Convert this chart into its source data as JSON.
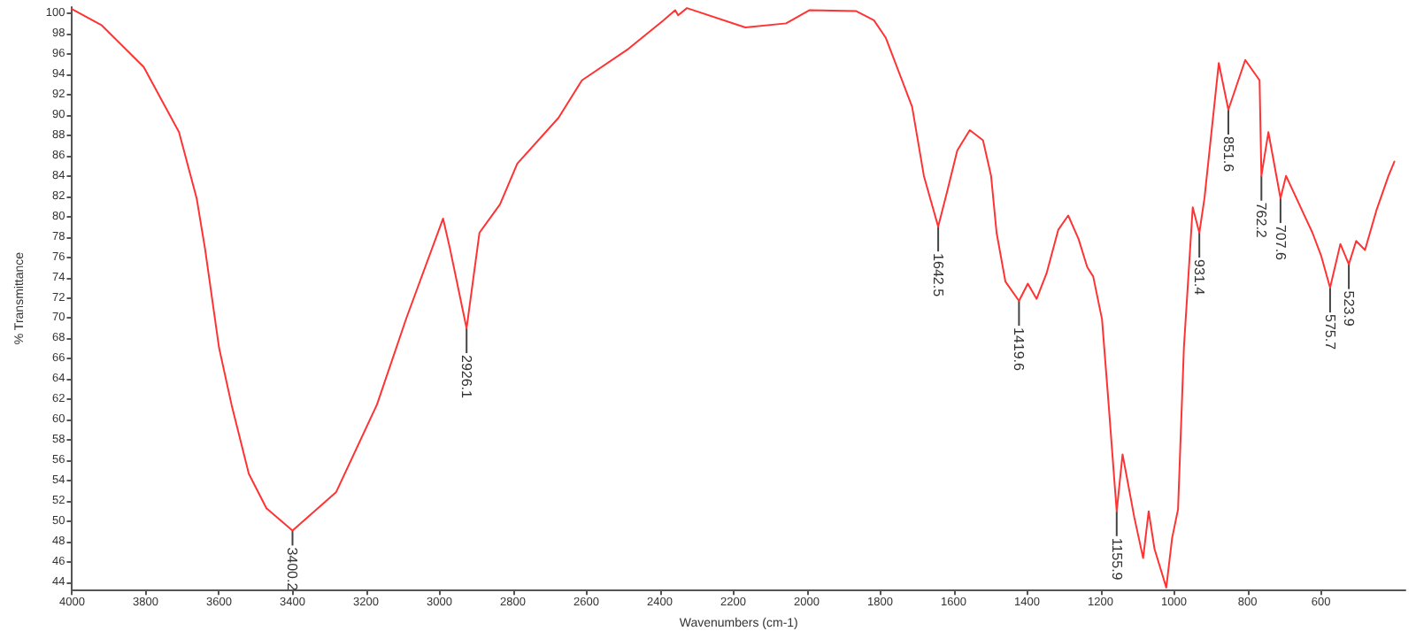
{
  "chart_data": {
    "type": "line",
    "xlabel": "Wavenumbers (cm-1)",
    "ylabel": "% Transmittance",
    "xlim": [
      4000,
      370
    ],
    "ylim": [
      43.3,
      100.6
    ],
    "xticks": [
      4000,
      3800,
      3600,
      3400,
      3200,
      3000,
      2800,
      2600,
      2400,
      2200,
      2000,
      1800,
      1600,
      1400,
      1200,
      1000,
      800,
      600
    ],
    "yticks": [
      44,
      46,
      48,
      50,
      52,
      54,
      56,
      58,
      60,
      62,
      64,
      66,
      68,
      70,
      72,
      74,
      76,
      78,
      80,
      82,
      84,
      86,
      88,
      90,
      92,
      94,
      96,
      98,
      100
    ],
    "grid": false,
    "marker": "none",
    "line_style": "solid",
    "series": [
      {
        "color": "#ff3333",
        "x": [
          4000,
          3919,
          3805,
          3709,
          3661,
          3638,
          3600,
          3566,
          3519,
          3471,
          3400,
          3281,
          3170,
          3090,
          2990,
          2971,
          2926,
          2891,
          2835,
          2788,
          2676,
          2612,
          2485,
          2390,
          2358,
          2350,
          2326,
          2167,
          2056,
          1992,
          1865,
          1817,
          1785,
          1713,
          1681,
          1642,
          1618,
          1590,
          1556,
          1520,
          1498,
          1483,
          1459,
          1422,
          1398,
          1374,
          1347,
          1315,
          1288,
          1260,
          1236,
          1220,
          1196,
          1180,
          1156,
          1140,
          1108,
          1084,
          1069,
          1053,
          1021,
          1005,
          989,
          973,
          949,
          931,
          917,
          878,
          852,
          806,
          767,
          762,
          743,
          710,
          695,
          623,
          599,
          575,
          547,
          524,
          504,
          480,
          448,
          416,
          400
        ],
        "values": [
          100.4,
          98.8,
          94.7,
          88.3,
          81.8,
          76.8,
          67.1,
          61.5,
          54.7,
          51.3,
          49.1,
          52.9,
          61.5,
          70.0,
          79.8,
          76.8,
          69.0,
          78.4,
          81.2,
          85.2,
          89.7,
          93.4,
          96.5,
          99.3,
          100.3,
          99.8,
          100.5,
          98.6,
          99.0,
          100.3,
          100.2,
          99.3,
          97.6,
          90.8,
          84.0,
          79.0,
          82.4,
          86.5,
          88.5,
          87.5,
          84.0,
          78.4,
          73.6,
          71.7,
          73.4,
          71.9,
          74.4,
          78.7,
          80.1,
          77.8,
          75.0,
          74.1,
          69.9,
          62.5,
          51.0,
          56.6,
          50.4,
          46.4,
          51.0,
          47.3,
          43.5,
          48.4,
          51.2,
          67.1,
          80.9,
          78.4,
          81.8,
          95.1,
          90.5,
          95.4,
          93.4,
          84.0,
          88.3,
          81.8,
          84.0,
          78.4,
          76.1,
          73.0,
          77.3,
          75.3,
          77.6,
          76.7,
          80.7,
          84.0,
          85.4
        ]
      }
    ],
    "annotations": [
      {
        "text": "3400.2",
        "x": 3400,
        "y": 49.1
      },
      {
        "text": "2926.1",
        "x": 2926,
        "y": 69.0
      },
      {
        "text": "1642.5",
        "x": 1642,
        "y": 79.0
      },
      {
        "text": "1419.6",
        "x": 1422,
        "y": 71.7
      },
      {
        "text": "1155.9",
        "x": 1156,
        "y": 51.0
      },
      {
        "text": "931.4",
        "x": 931,
        "y": 78.4
      },
      {
        "text": "851.6",
        "x": 852,
        "y": 90.5
      },
      {
        "text": "762.2",
        "x": 762,
        "y": 84.0
      },
      {
        "text": "707.6",
        "x": 710,
        "y": 81.8
      },
      {
        "text": "575.7",
        "x": 575,
        "y": 73.0
      },
      {
        "text": "523.9",
        "x": 524,
        "y": 75.3
      }
    ]
  }
}
